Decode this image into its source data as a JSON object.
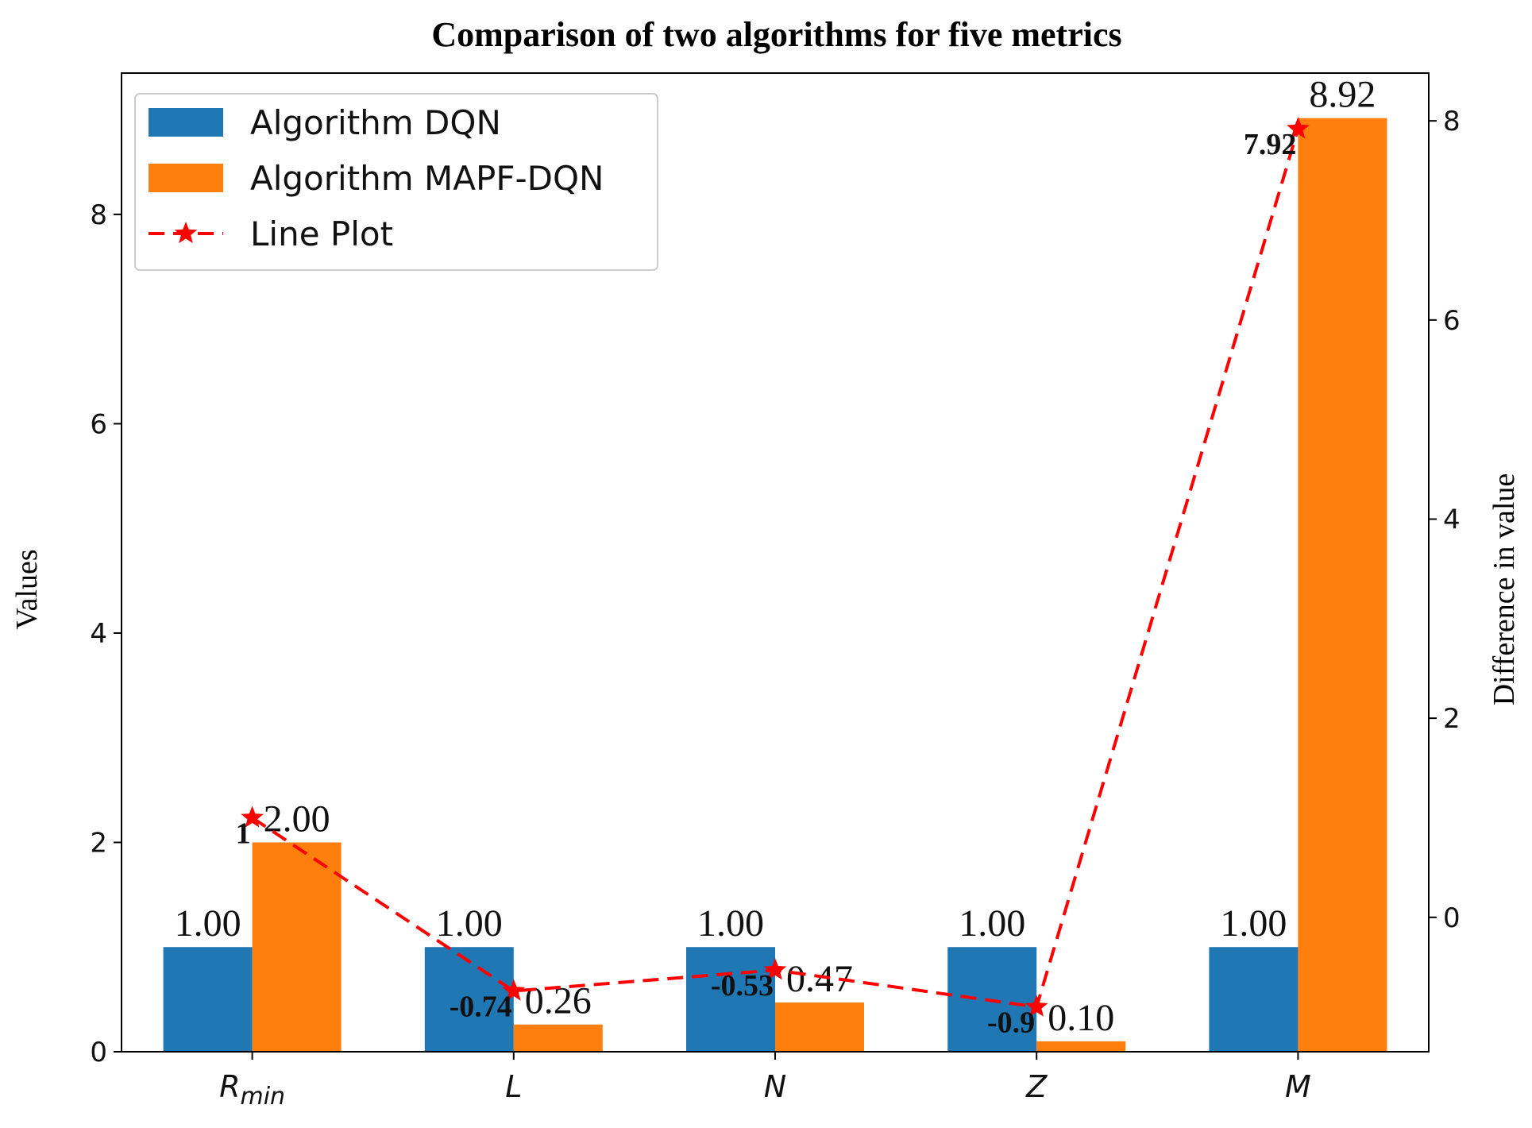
{
  "chart_data": {
    "type": "bar",
    "title": "Comparison of two algorithms for five metrics",
    "ylabel": "Values",
    "y2label": "Difference in value",
    "ylim": [
      0,
      9.35
    ],
    "y2lim": [
      -1.35,
      8.48
    ],
    "yticks": [
      0,
      2,
      4,
      6,
      8
    ],
    "y2ticks": [
      0,
      2,
      4,
      6,
      8
    ],
    "categories": [
      {
        "main": "R",
        "sub": "min"
      },
      {
        "main": "L",
        "sub": ""
      },
      {
        "main": "N",
        "sub": ""
      },
      {
        "main": "Z",
        "sub": ""
      },
      {
        "main": "M",
        "sub": ""
      }
    ],
    "series": [
      {
        "name": "Algorithm DQN",
        "color": "#1f77b4",
        "values": [
          1.0,
          1.0,
          1.0,
          1.0,
          1.0
        ],
        "labels": [
          "1.00",
          "1.00",
          "1.00",
          "1.00",
          "1.00"
        ]
      },
      {
        "name": "Algorithm MAPF-DQN",
        "color": "#ff7f0e",
        "values": [
          2.0,
          0.26,
          0.47,
          0.1,
          8.92
        ],
        "labels": [
          "2.00",
          "0.26",
          "0.47",
          "0.10",
          "8.92"
        ]
      }
    ],
    "line": {
      "name": "Line Plot",
      "color": "#ff0000",
      "axis": "right",
      "values": [
        1,
        -0.74,
        -0.53,
        -0.9,
        7.92
      ],
      "labels": [
        "1",
        "-0.74",
        "-0.53",
        "-0.9",
        "7.92"
      ]
    },
    "legend": "top-left"
  }
}
